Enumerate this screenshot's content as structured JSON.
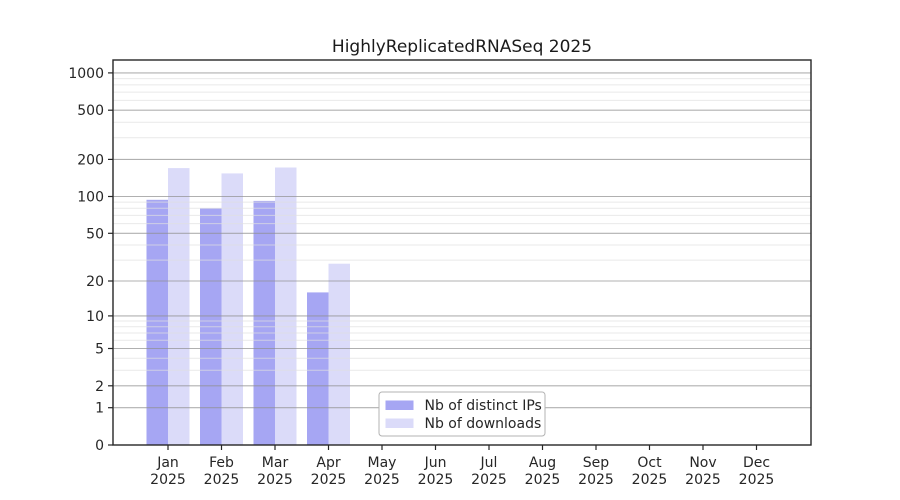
{
  "figure": {
    "background": "#ffffff",
    "text_color": "#262626",
    "spine_color": "#262626",
    "major_grid_color": "#909090",
    "minor_grid_color": "#e0e0e0",
    "legend_border_color": "#b3b3b3"
  },
  "chart_data": {
    "type": "bar",
    "title": "HighlyReplicatedRNASeq 2025",
    "categories": [
      "Jan",
      "Feb",
      "Mar",
      "Apr",
      "May",
      "Jun",
      "Jul",
      "Aug",
      "Sep",
      "Oct",
      "Nov",
      "Dec"
    ],
    "category_year": "2025",
    "series": [
      {
        "name": "Nb of distinct IPs",
        "color": "#a6a6f3",
        "values": [
          94,
          80,
          92,
          16,
          0,
          0,
          0,
          0,
          0,
          0,
          0,
          0
        ]
      },
      {
        "name": "Nb of downloads",
        "color": "#dbdbf9",
        "values": [
          170,
          154,
          172,
          28,
          0,
          0,
          0,
          0,
          0,
          0,
          0,
          0
        ]
      }
    ],
    "yscale": "log10(x+1)",
    "y_ticks": [
      0,
      1,
      2,
      5,
      10,
      20,
      50,
      100,
      200,
      500,
      1000
    ],
    "y_minor_ticks": [
      3,
      4,
      6,
      7,
      8,
      9,
      30,
      40,
      60,
      70,
      80,
      90,
      300,
      400,
      600,
      700,
      800,
      900
    ],
    "ylim": [
      0,
      1272
    ],
    "xlabel": "",
    "ylabel": "",
    "grid": true,
    "legend_position": "lower-left-of-center",
    "legend": [
      "Nb of distinct IPs",
      "Nb of downloads"
    ]
  }
}
